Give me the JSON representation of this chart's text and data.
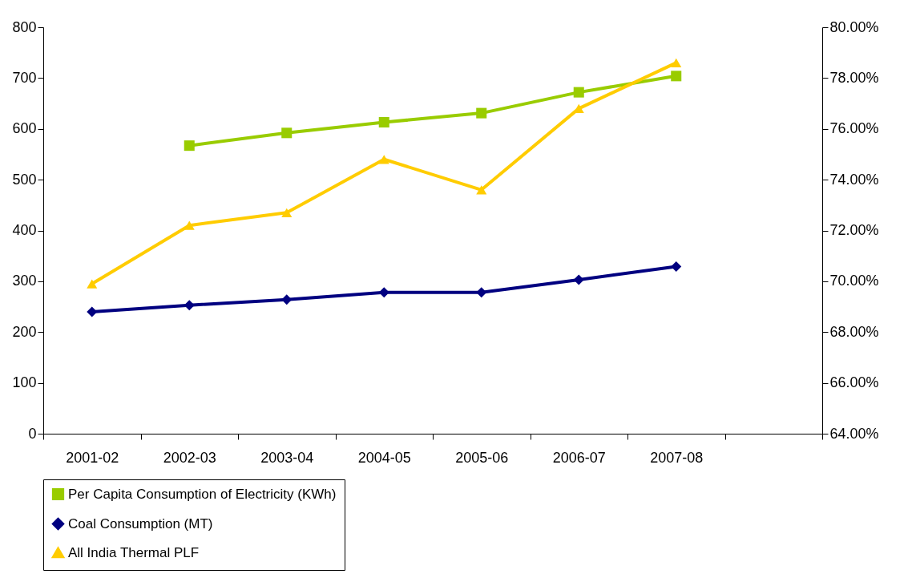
{
  "chart_data": {
    "type": "line",
    "categories": [
      "2001-02",
      "2002-03",
      "2003-04",
      "2004-05",
      "2005-06",
      "2006-07",
      "2007-08",
      null
    ],
    "series": [
      {
        "name": "Per Capita Consumption of Electricity (KWh)",
        "color": "#99cc00",
        "marker": "square",
        "values": [
          null,
          567,
          592,
          613,
          631,
          672,
          704,
          null
        ]
      },
      {
        "name": "Coal Consumption (MT)",
        "color": "#000080",
        "marker": "diamond",
        "values": [
          240,
          253,
          264,
          278,
          278,
          303,
          329,
          null
        ]
      },
      {
        "name": "All India Thermal PLF",
        "color": "#ffcc00",
        "marker": "triangle",
        "axis": "y2",
        "values": [
          69.9,
          72.2,
          72.7,
          74.8,
          73.6,
          76.8,
          78.6,
          null
        ]
      }
    ],
    "ylim": [
      0,
      800
    ],
    "yticks": [
      0,
      100,
      200,
      300,
      400,
      500,
      600,
      700,
      800
    ],
    "y2lim": [
      64,
      80
    ],
    "y2ticks": [
      {
        "value": 64,
        "label": "64.00%"
      },
      {
        "value": 66,
        "label": "66.00%"
      },
      {
        "value": 68,
        "label": "68.00%"
      },
      {
        "value": 70,
        "label": "70.00%"
      },
      {
        "value": 72,
        "label": "72.00%"
      },
      {
        "value": 74,
        "label": "74.00%"
      },
      {
        "value": 76,
        "label": "76.00%"
      },
      {
        "value": 78,
        "label": "78.00%"
      },
      {
        "value": 80,
        "label": "80.00%"
      }
    ],
    "grid": false,
    "legend": "bottom"
  }
}
